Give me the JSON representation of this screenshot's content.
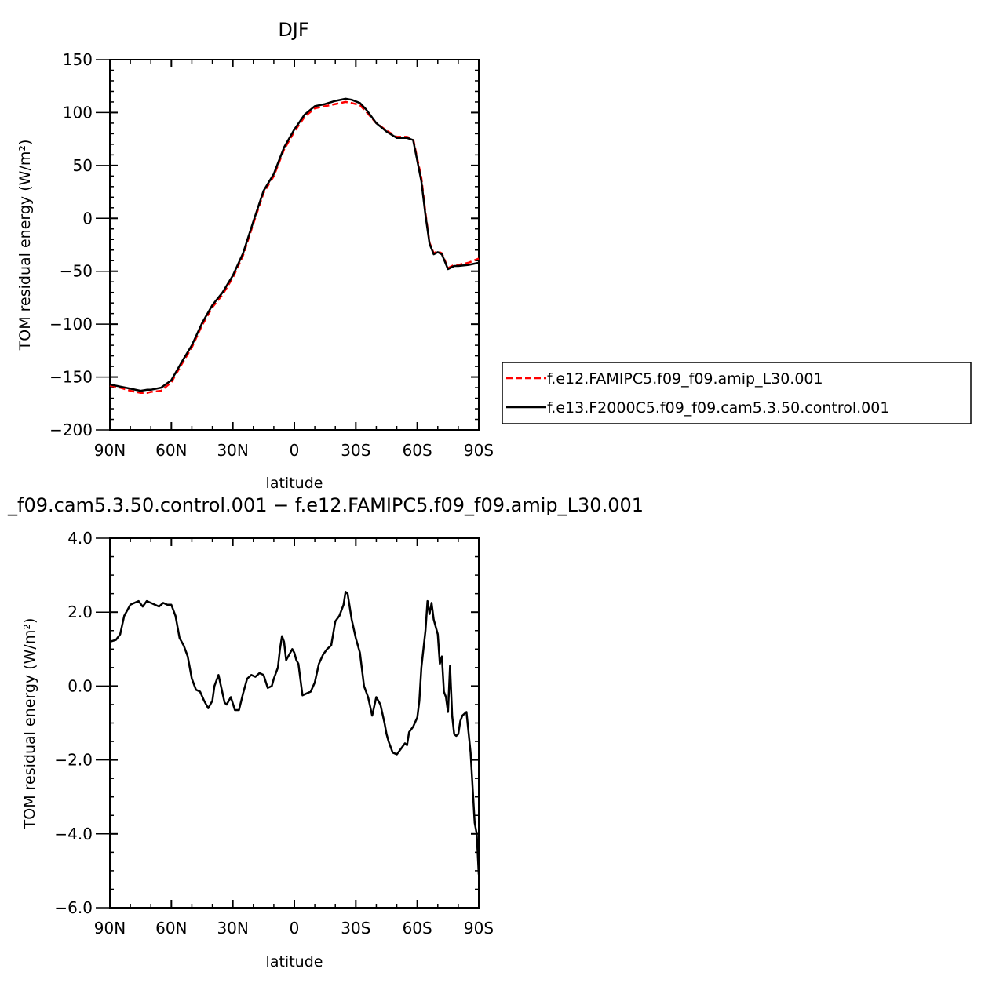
{
  "chart_data": [
    {
      "type": "line",
      "title": "DJF",
      "xlabel": "latitude",
      "ylabel": "TOM residual energy (W/m²)",
      "xlim": [
        90,
        -90
      ],
      "ylim": [
        -200,
        150
      ],
      "xticks": [
        90,
        60,
        30,
        0,
        -30,
        -60,
        -90
      ],
      "xtick_labels": [
        "90N",
        "60N",
        "30N",
        "0",
        "30S",
        "60S",
        "90S"
      ],
      "yticks": [
        150,
        100,
        50,
        0,
        -50,
        -100,
        -150,
        -200
      ],
      "ytick_labels": [
        "150",
        "100",
        "50",
        "0",
        "−50",
        "−100",
        "−150",
        "−200"
      ],
      "legend_position": "right, outside plot",
      "series": [
        {
          "name": "f.e12.FAMIPC5.f09_f09.amip_L30.001",
          "color": "#ff0000",
          "style": "dashed",
          "x": [
            90,
            85,
            80,
            75,
            72,
            70,
            65,
            60,
            55,
            50,
            45,
            40,
            35,
            30,
            25,
            20,
            15,
            10,
            5,
            0,
            -5,
            -10,
            -15,
            -20,
            -25,
            -28,
            -32,
            -35,
            -40,
            -45,
            -50,
            -55,
            -58,
            -62,
            -64,
            -66,
            -68,
            -70,
            -72,
            -75,
            -78,
            -80,
            -85,
            -90
          ],
          "y": [
            -158,
            -160,
            -163,
            -165,
            -165,
            -164,
            -163,
            -155,
            -138,
            -122,
            -101,
            -84,
            -72,
            -56,
            -35,
            -5,
            24,
            40,
            65,
            82,
            96,
            104,
            106,
            108,
            110,
            109,
            107,
            101,
            90,
            83,
            77,
            77,
            75,
            38,
            5,
            -23,
            -33,
            -31,
            -33,
            -47,
            -44,
            -44,
            -42,
            -38
          ]
        },
        {
          "name": "f.e13.F2000C5.f09_f09.cam5.3.50.control.001",
          "color": "#000000",
          "style": "solid",
          "x": [
            90,
            85,
            80,
            75,
            72,
            70,
            65,
            60,
            55,
            50,
            45,
            40,
            35,
            30,
            25,
            20,
            15,
            10,
            5,
            0,
            -5,
            -10,
            -15,
            -20,
            -25,
            -28,
            -32,
            -35,
            -40,
            -45,
            -50,
            -55,
            -58,
            -62,
            -64,
            -66,
            -68,
            -70,
            -72,
            -75,
            -78,
            -80,
            -85,
            -90
          ],
          "y": [
            -157,
            -159,
            -161,
            -163,
            -162,
            -162,
            -160,
            -153,
            -136,
            -120,
            -99,
            -82,
            -70,
            -54,
            -33,
            -3,
            26,
            42,
            67,
            84,
            98,
            106,
            108,
            111,
            113,
            112,
            109,
            103,
            90,
            82,
            76,
            76,
            74,
            35,
            3,
            -24,
            -34,
            -32,
            -34,
            -48,
            -45,
            -45,
            -44,
            -42
          ]
        }
      ]
    },
    {
      "type": "line",
      "title": "_f09.cam5.3.50.control.001  −  f.e12.FAMIPC5.f09_f09.amip_L30.001",
      "xlabel": "latitude",
      "ylabel": "TOM residual energy (W/m²)",
      "xlim": [
        90,
        -90
      ],
      "ylim": [
        -6.0,
        4.0
      ],
      "xticks": [
        90,
        60,
        30,
        0,
        -30,
        -60,
        -90
      ],
      "xtick_labels": [
        "90N",
        "60N",
        "30N",
        "0",
        "30S",
        "60S",
        "90S"
      ],
      "yticks": [
        4,
        2,
        0,
        -2,
        -4,
        -6
      ],
      "ytick_labels": [
        "4.0",
        "2.0",
        "0.0",
        "−2.0",
        "−4.0",
        "−6.0"
      ],
      "series": [
        {
          "color": "#000000",
          "style": "solid",
          "x": [
            90,
            87,
            85,
            83,
            80,
            78,
            76,
            74,
            72,
            70,
            68,
            66,
            64,
            62,
            60,
            58,
            56,
            54,
            52,
            50,
            48,
            46,
            44,
            42,
            40,
            39,
            37,
            35,
            34,
            33,
            31,
            29,
            27,
            25,
            23,
            21,
            19,
            17,
            15,
            13,
            11,
            10,
            8,
            7,
            6,
            5,
            4,
            3,
            1,
            0,
            -1,
            -2,
            -4,
            -6,
            -8,
            -10,
            -12,
            -14,
            -16,
            -18,
            -20,
            -22,
            -24,
            -25,
            -26,
            -28,
            -30,
            -32,
            -34,
            -36,
            -38,
            -40,
            -42,
            -44,
            -45,
            -46,
            -48,
            -50,
            -52,
            -54,
            -55,
            -56,
            -58,
            -60,
            -61,
            -62,
            -64,
            -65,
            -66,
            -67,
            -68,
            -70,
            -71,
            -72,
            -73,
            -74,
            -75,
            -76,
            -77,
            -78,
            -79,
            -80,
            -81,
            -82,
            -84,
            -86,
            -88,
            -89,
            -90
          ],
          "y": [
            1.2,
            1.25,
            1.4,
            1.9,
            2.2,
            2.25,
            2.3,
            2.15,
            2.3,
            2.25,
            2.2,
            2.15,
            2.25,
            2.2,
            2.2,
            1.9,
            1.3,
            1.1,
            0.8,
            0.2,
            -0.1,
            -0.15,
            -0.4,
            -0.6,
            -0.4,
            0.0,
            0.3,
            -0.2,
            -0.45,
            -0.5,
            -0.3,
            -0.65,
            -0.65,
            -0.2,
            0.2,
            0.3,
            0.25,
            0.35,
            0.3,
            -0.05,
            0.0,
            0.2,
            0.5,
            1.0,
            1.35,
            1.2,
            0.7,
            0.8,
            1.0,
            0.9,
            0.7,
            0.6,
            -0.25,
            -0.2,
            -0.15,
            0.1,
            0.6,
            0.85,
            1.0,
            1.1,
            1.75,
            1.9,
            2.2,
            2.55,
            2.5,
            1.8,
            1.3,
            0.9,
            0.0,
            -0.3,
            -0.8,
            -0.3,
            -0.5,
            -1.0,
            -1.3,
            -1.5,
            -1.8,
            -1.85,
            -1.7,
            -1.55,
            -1.6,
            -1.25,
            -1.1,
            -0.85,
            -0.4,
            0.5,
            1.5,
            2.3,
            1.95,
            2.25,
            1.8,
            1.4,
            0.6,
            0.8,
            -0.15,
            -0.3,
            -0.7,
            0.55,
            -0.8,
            -1.3,
            -1.35,
            -1.3,
            -0.95,
            -0.8,
            -0.7,
            -1.8,
            -3.7,
            -4.0,
            -5.1
          ]
        }
      ]
    }
  ]
}
